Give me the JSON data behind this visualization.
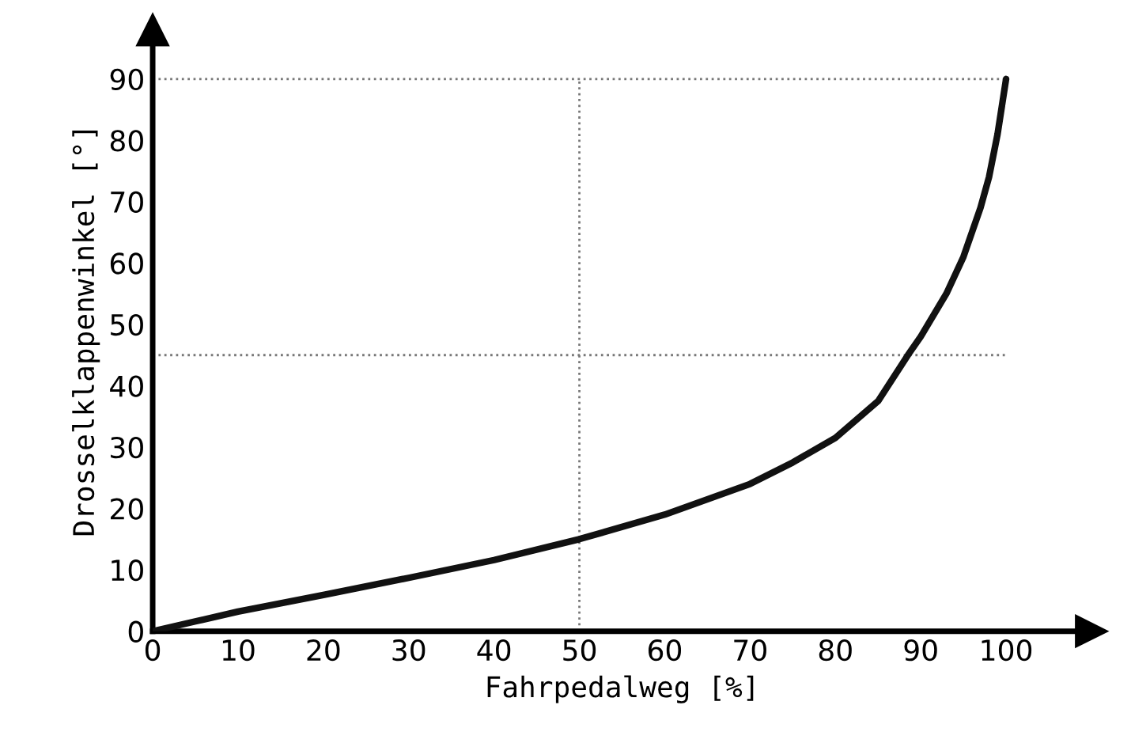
{
  "chart_data": {
    "type": "line",
    "xlabel": "Fahrpedalweg [%]",
    "ylabel": "Drosselklappenwinkel [°]",
    "x": [
      0,
      5,
      10,
      20,
      30,
      40,
      50,
      60,
      70,
      75,
      80,
      85,
      88.5,
      90,
      93,
      95,
      97,
      98,
      99,
      100
    ],
    "series": [
      {
        "color": "#111111",
        "values": [
          0,
          1.6,
          3.2,
          5.9,
          8.7,
          11.6,
          15,
          19,
          24,
          27.5,
          31.5,
          37.5,
          45,
          48,
          55,
          61,
          69,
          74,
          81,
          90
        ]
      }
    ],
    "xlim": [
      0,
      110
    ],
    "ylim": [
      0,
      98
    ],
    "xticks": [
      0,
      10,
      20,
      30,
      40,
      50,
      60,
      70,
      80,
      90,
      100
    ],
    "yticks": [
      0,
      10,
      20,
      30,
      40,
      50,
      60,
      70,
      80,
      90
    ],
    "ref_lines": [
      {
        "axis": "x",
        "value": 50,
        "line_style": "dotted",
        "color": "#777777"
      },
      {
        "axis": "y",
        "value": 45,
        "line_style": "dotted",
        "color": "#777777"
      },
      {
        "axis": "y",
        "value": 90,
        "line_style": "dotted",
        "color": "#777777"
      }
    ],
    "grid": false,
    "legend": false,
    "marker": "none",
    "line_style": "solid"
  }
}
